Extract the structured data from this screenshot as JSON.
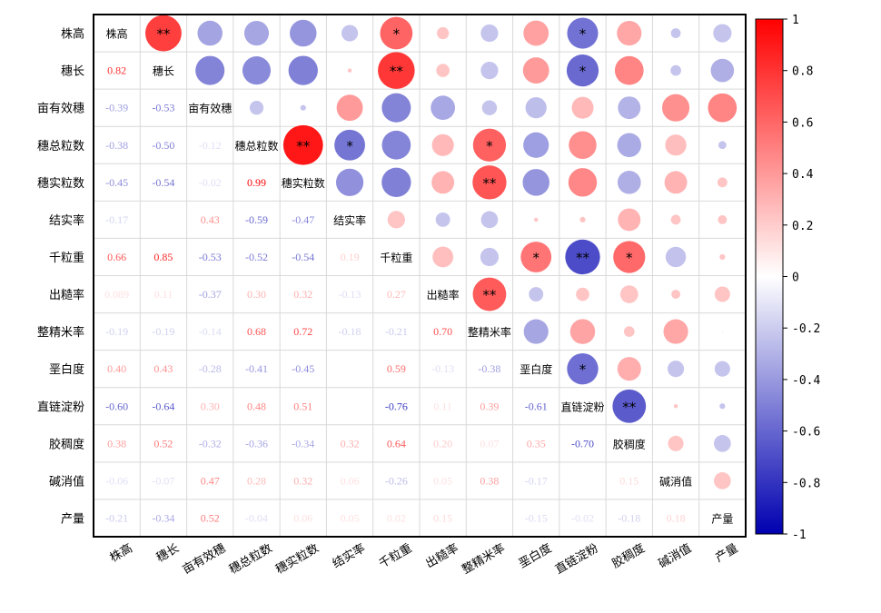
{
  "chart_data": {
    "type": "heatmap",
    "variables": [
      "株高",
      "穗长",
      "亩有效穗",
      "穗总粒数",
      "穗实粒数",
      "结实率",
      "千粒重",
      "出糙率",
      "整精米率",
      "垩白度",
      "直链淀粉",
      "胶稠度",
      "碱消值",
      "产量"
    ],
    "matrix": [
      [
        1,
        0.82,
        -0.39,
        -0.38,
        -0.45,
        -0.17,
        0.66,
        0.09,
        -0.19,
        0.4,
        -0.6,
        0.38,
        -0.06,
        -0.21
      ],
      [
        0.82,
        1,
        -0.53,
        -0.5,
        -0.54,
        0.01,
        0.85,
        0.11,
        -0.19,
        0.43,
        -0.64,
        0.52,
        -0.07,
        -0.34
      ],
      [
        -0.39,
        -0.53,
        1,
        -0.12,
        -0.02,
        0.43,
        -0.53,
        -0.37,
        -0.14,
        -0.28,
        0.3,
        -0.32,
        0.47,
        0.52
      ],
      [
        -0.38,
        -0.5,
        -0.12,
        1,
        0.99,
        -0.59,
        -0.52,
        0.3,
        0.68,
        -0.41,
        0.48,
        -0.36,
        0.28,
        -0.04
      ],
      [
        -0.45,
        -0.54,
        -0.02,
        0.99,
        1,
        -0.47,
        -0.54,
        0.32,
        0.72,
        -0.45,
        0.51,
        -0.34,
        0.32,
        0.06
      ],
      [
        -0.17,
        0.01,
        0.43,
        -0.59,
        -0.47,
        1,
        0.19,
        -0.13,
        -0.18,
        0.01,
        0.02,
        0.32,
        0.06,
        0.05
      ],
      [
        0.66,
        0.85,
        -0.53,
        -0.52,
        -0.54,
        0.19,
        1,
        0.27,
        -0.21,
        0.59,
        -0.76,
        0.64,
        -0.26,
        0.02
      ],
      [
        0.09,
        0.11,
        -0.37,
        0.3,
        0.32,
        -0.13,
        0.27,
        1,
        0.7,
        -0.13,
        0.11,
        0.2,
        0.05,
        0.15
      ],
      [
        -0.19,
        -0.19,
        -0.14,
        0.68,
        0.72,
        -0.18,
        -0.21,
        0.7,
        1,
        -0.38,
        0.39,
        0.07,
        0.38,
        0.0
      ],
      [
        0.4,
        0.43,
        -0.28,
        -0.41,
        -0.45,
        0.01,
        0.59,
        -0.13,
        -0.38,
        1,
        -0.61,
        0.35,
        -0.17,
        -0.15
      ],
      [
        -0.6,
        -0.64,
        0.3,
        0.48,
        0.51,
        0.02,
        -0.76,
        0.11,
        0.39,
        -0.61,
        1,
        -0.7,
        0.01,
        -0.02
      ],
      [
        0.38,
        0.52,
        -0.32,
        -0.36,
        -0.34,
        0.32,
        0.64,
        0.2,
        0.07,
        0.35,
        -0.7,
        1,
        0.15,
        -0.18
      ],
      [
        -0.06,
        -0.07,
        0.47,
        0.28,
        0.32,
        0.06,
        -0.26,
        0.05,
        0.38,
        -0.17,
        0.01,
        0.15,
        1,
        0.18
      ],
      [
        -0.21,
        -0.34,
        0.52,
        -0.04,
        0.06,
        0.05,
        0.02,
        0.15,
        0.0,
        -0.15,
        -0.02,
        -0.18,
        0.18,
        1
      ]
    ],
    "lower_labels": [
      [],
      [
        "0.82"
      ],
      [
        "-0.39",
        "-0.53"
      ],
      [
        "-0.38",
        "-0.50",
        "-0.12"
      ],
      [
        "-0.45",
        "-0.54",
        "-0.02",
        "0.99"
      ],
      [
        "-0.17",
        "",
        "0.43",
        "-0.59",
        "-0.47"
      ],
      [
        "0.66",
        "0.85",
        "-0.53",
        "-0.52",
        "-0.54",
        "0.19"
      ],
      [
        "0.089",
        "0.11",
        "-0.37",
        "0.30",
        "0.32",
        "-0.13",
        "0.27"
      ],
      [
        "-0.19",
        "-0.19",
        "-0.14",
        "0.68",
        "0.72",
        "-0.18",
        "-0.21",
        "0.70"
      ],
      [
        "0.40",
        "0.43",
        "-0.28",
        "-0.41",
        "-0.45",
        "",
        "0.59",
        "-0.13",
        "-0.38"
      ],
      [
        "-0.60",
        "-0.64",
        "0.30",
        "0.48",
        "0.51",
        "",
        "-0.76",
        "0.11",
        "0.39",
        "-0.61"
      ],
      [
        "0.38",
        "0.52",
        "-0.32",
        "-0.36",
        "-0.34",
        "0.32",
        "0.64",
        "0.20",
        "0.07",
        "0.35",
        "-0.70"
      ],
      [
        "-0.06",
        "-0.07",
        "0.47",
        "0.28",
        "0.32",
        "0.06",
        "-0.26",
        "0.05",
        "0.38",
        "-0.17",
        "",
        "0.15"
      ],
      [
        "-0.21",
        "-0.34",
        "0.52",
        "-0.04",
        "0.06",
        "0.05",
        "0.02",
        "0.15",
        "",
        "-0.15",
        "-0.02",
        "-0.18",
        "0.18"
      ]
    ],
    "significance": [
      {
        "row": 0,
        "col": 1,
        "mark": "**"
      },
      {
        "row": 0,
        "col": 6,
        "mark": "*"
      },
      {
        "row": 0,
        "col": 10,
        "mark": "*"
      },
      {
        "row": 1,
        "col": 6,
        "mark": "**"
      },
      {
        "row": 1,
        "col": 10,
        "mark": "*"
      },
      {
        "row": 3,
        "col": 4,
        "mark": "**"
      },
      {
        "row": 3,
        "col": 5,
        "mark": "*"
      },
      {
        "row": 3,
        "col": 8,
        "mark": "*"
      },
      {
        "row": 4,
        "col": 8,
        "mark": "**"
      },
      {
        "row": 6,
        "col": 9,
        "mark": "*"
      },
      {
        "row": 6,
        "col": 10,
        "mark": "**"
      },
      {
        "row": 6,
        "col": 11,
        "mark": "*"
      },
      {
        "row": 7,
        "col": 8,
        "mark": "**"
      },
      {
        "row": 9,
        "col": 10,
        "mark": "*"
      },
      {
        "row": 10,
        "col": 11,
        "mark": "**"
      }
    ],
    "colorbar": {
      "ticks": [
        "1",
        "0.8",
        "0.6",
        "0.4",
        "0.2",
        "0",
        "-0.2",
        "-0.4",
        "-0.6",
        "-0.8",
        "-1"
      ],
      "range": [
        -1,
        1
      ],
      "colors": {
        "positive": "#ff0000",
        "neutral": "#ffffff",
        "negative": "#0000b0"
      }
    }
  }
}
